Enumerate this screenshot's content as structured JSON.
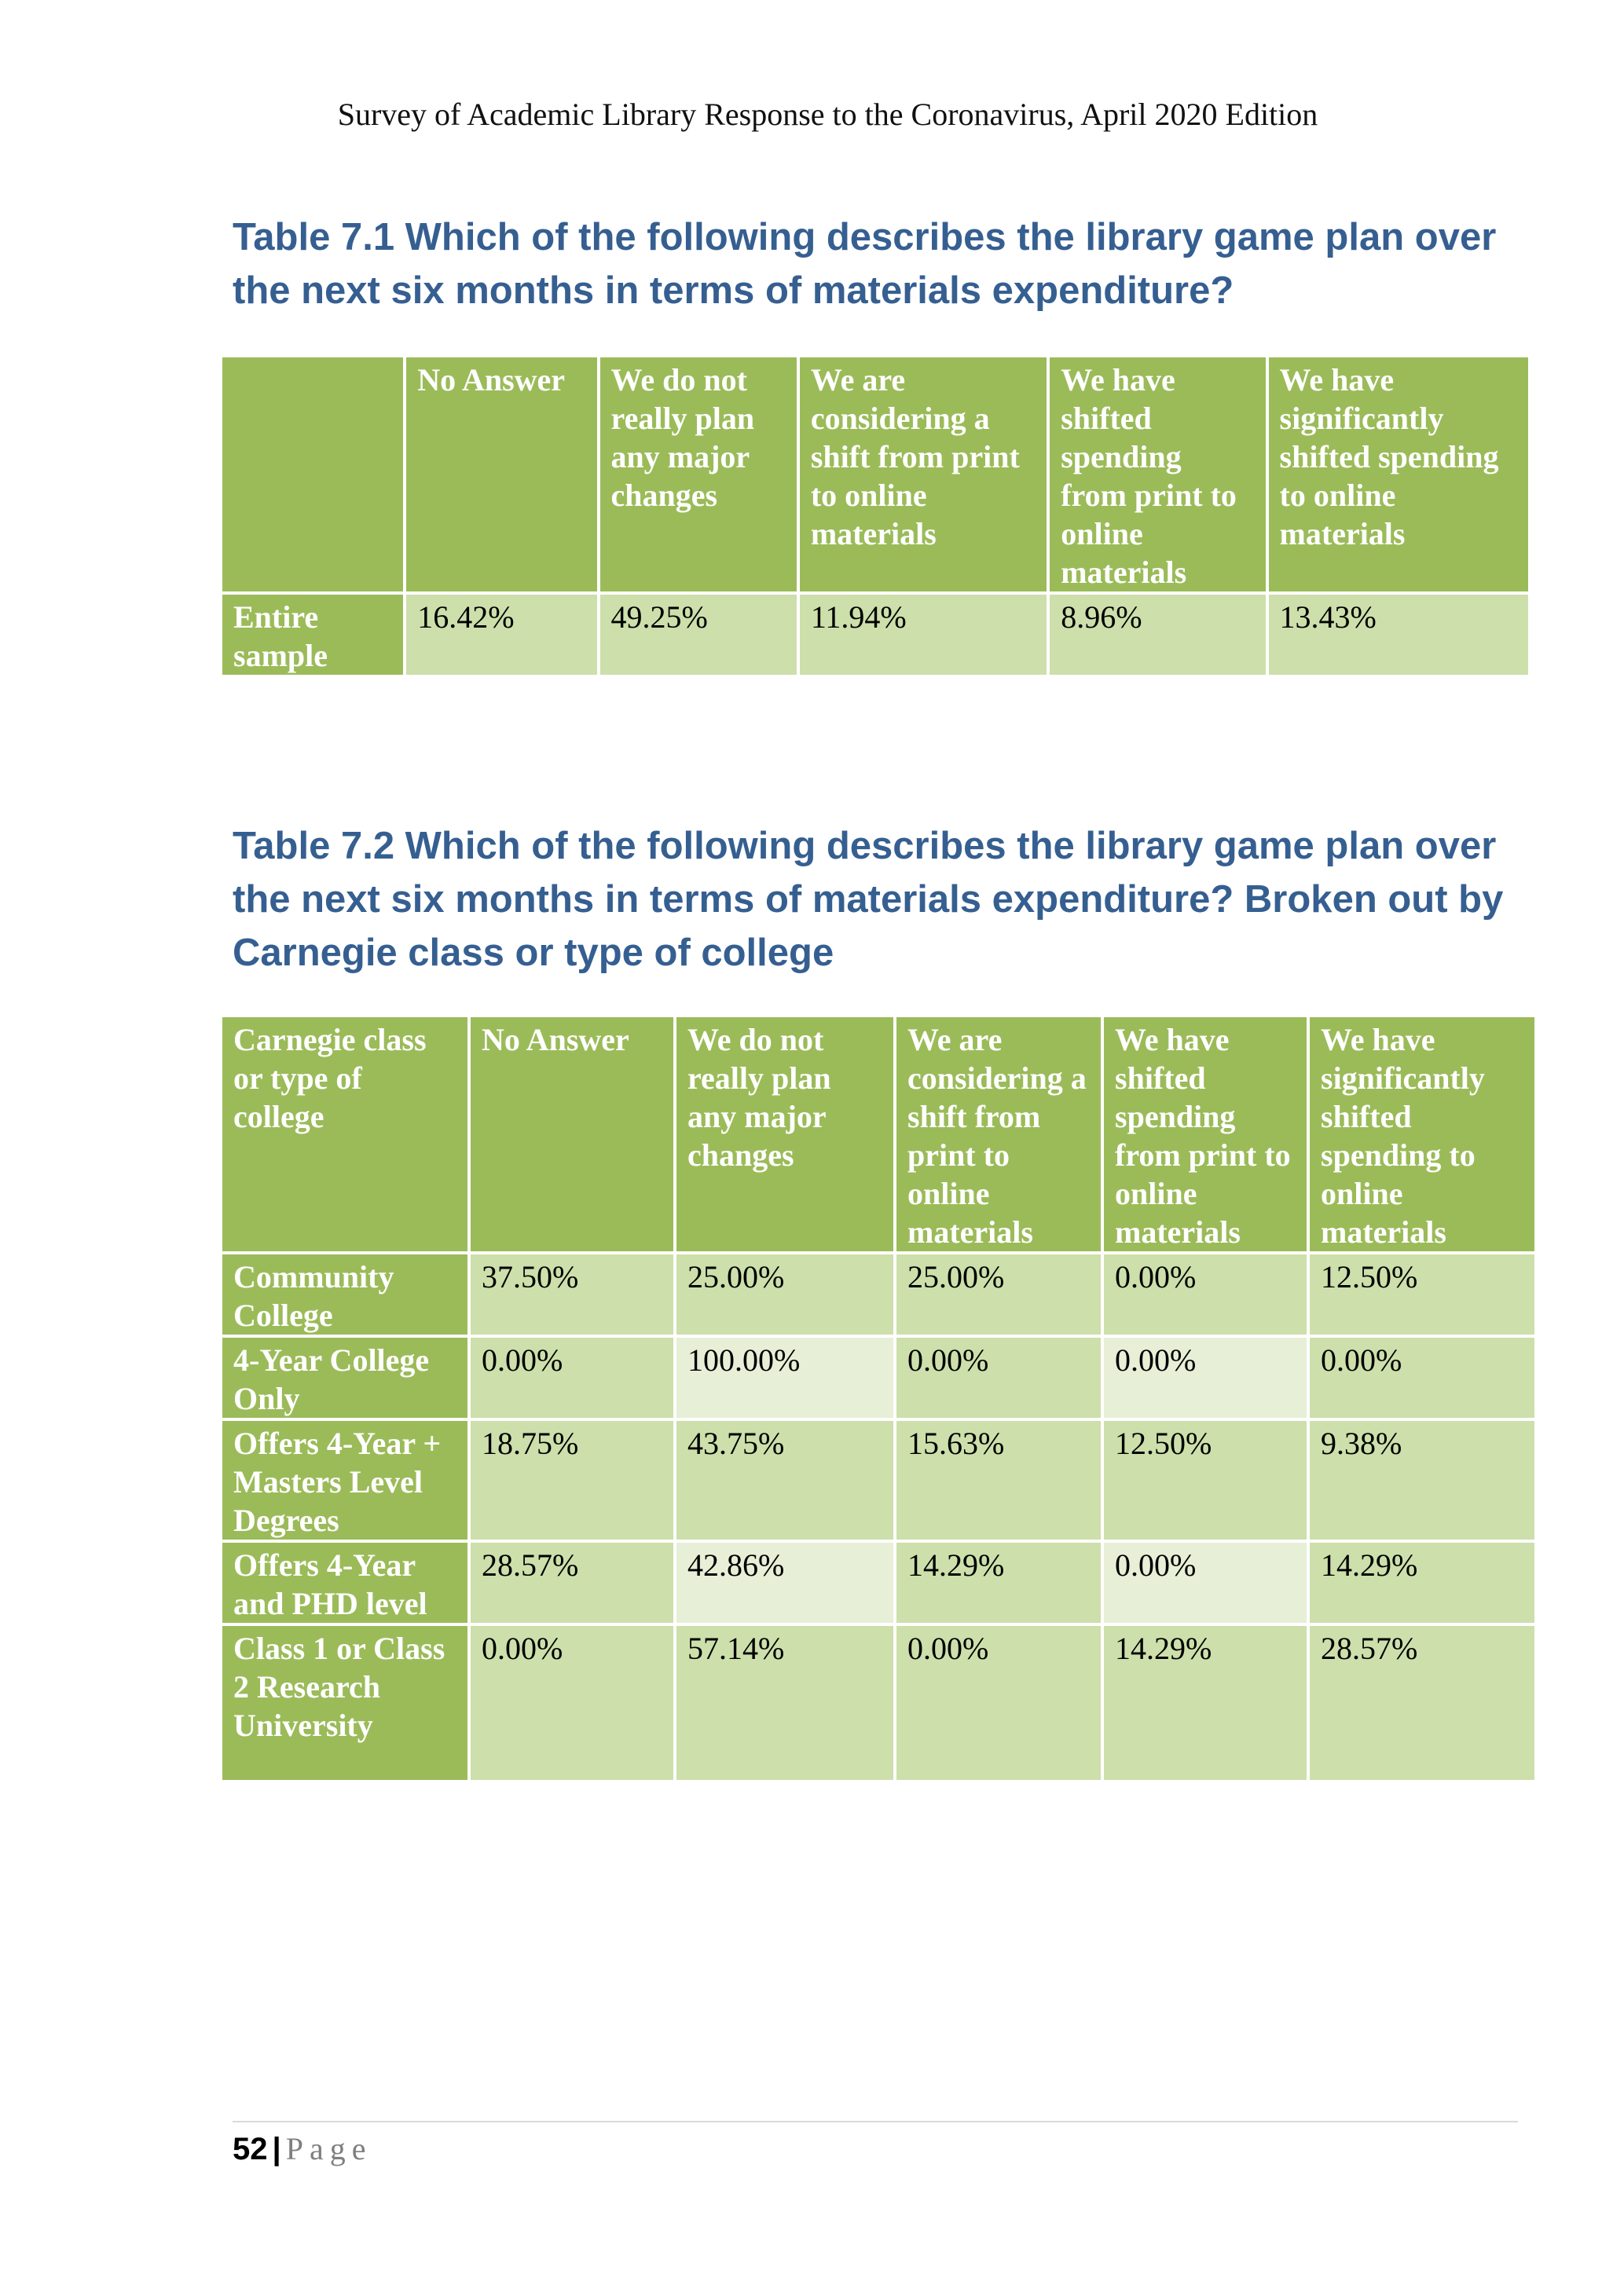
{
  "header": {
    "running_title": "Survey of Academic Library Response to the  Coronavirus, April 2020 Edition"
  },
  "table1": {
    "title": "Table 7.1 Which of the following describes the library game plan over the next six months in terms of materials expenditure?",
    "columns": [
      "",
      "No Answer",
      "We do not really plan any major changes",
      "We are considering a shift from print to online materials",
      "We have shifted spending from print to online materials",
      "We have significantly shifted spending to online materials"
    ],
    "rows": [
      {
        "label": "Entire sample",
        "values": [
          "16.42%",
          "49.25%",
          "11.94%",
          "8.96%",
          "13.43%"
        ]
      }
    ]
  },
  "table2": {
    "title": "Table 7.2 Which of the following describes the library game plan over the next six months in terms of materials expenditure? Broken out by Carnegie class or type of college",
    "columns": [
      "Carnegie class or type of college",
      "No Answer",
      "We do not really plan any major changes",
      "We are considering a shift from print to online materials",
      "We have shifted spending from print to online materials",
      "We have significantly shifted spending to online materials"
    ],
    "rows": [
      {
        "label": "Community College",
        "values": [
          "37.50%",
          "25.00%",
          "25.00%",
          "0.00%",
          "12.50%"
        ]
      },
      {
        "label": "4-Year College Only",
        "values": [
          "0.00%",
          "100.00%",
          "0.00%",
          "0.00%",
          "0.00%"
        ]
      },
      {
        "label": "Offers 4-Year + Masters Level Degrees",
        "values": [
          "18.75%",
          "43.75%",
          "15.63%",
          "12.50%",
          "9.38%"
        ]
      },
      {
        "label": "Offers 4-Year and PHD level",
        "values": [
          "28.57%",
          "42.86%",
          "14.29%",
          "0.00%",
          "14.29%"
        ]
      },
      {
        "label": "Class 1 or Class 2 Research University",
        "values": [
          "0.00%",
          "57.14%",
          "0.00%",
          "14.29%",
          "28.57%"
        ]
      }
    ]
  },
  "footer": {
    "page_number": "52",
    "separator": "|",
    "page_label": "Page"
  },
  "colors": {
    "title_blue": "#365f91",
    "header_green": "#9bbb59",
    "cell_green": "#cddfab",
    "cell_light_green": "#e7efd7"
  }
}
